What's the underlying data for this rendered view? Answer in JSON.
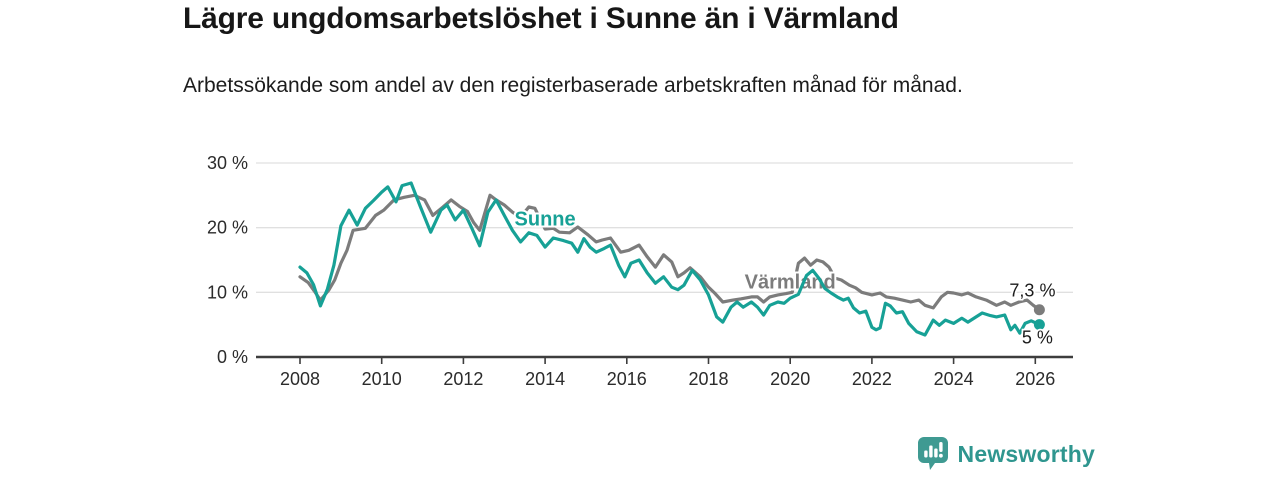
{
  "header": {
    "title": "Lägre ungdomsarbetslöshet i Sunne än i Värmland",
    "subtitle": "Arbetssökande som andel av den registerbaserade arbetskraften månad för månad."
  },
  "branding": {
    "name": "Newsworthy",
    "icon": "bar-chart-speech-bubble-icon",
    "icon_color": "#3f9a92",
    "text_color": "#2f968f"
  },
  "chart_data": {
    "type": "line",
    "title": "Lägre ungdomsarbetslöshet i Sunne än i Värmland",
    "subtitle": "Arbetssökande som andel av den registerbaserade arbetskraften månad för månad.",
    "unit": "%",
    "grid": "horizontal",
    "xlim": [
      2007.0,
      2026.95
    ],
    "ylim": [
      0,
      30
    ],
    "y_ticks": [
      {
        "v": 0,
        "label": "0 %"
      },
      {
        "v": 10,
        "label": "10 %"
      },
      {
        "v": 20,
        "label": "20 %"
      },
      {
        "v": 30,
        "label": "30 %"
      }
    ],
    "x_ticks": [
      {
        "v": 2008,
        "label": "2008"
      },
      {
        "v": 2010,
        "label": "2010"
      },
      {
        "v": 2012,
        "label": "2012"
      },
      {
        "v": 2014,
        "label": "2014"
      },
      {
        "v": 2016,
        "label": "2016"
      },
      {
        "v": 2018,
        "label": "2018"
      },
      {
        "v": 2020,
        "label": "2020"
      },
      {
        "v": 2022,
        "label": "2022"
      },
      {
        "v": 2024,
        "label": "2024"
      },
      {
        "v": 2026,
        "label": "2026"
      }
    ],
    "colors": {
      "grid": "#e0e0e0",
      "axis": "#3d3d3d",
      "tick_text": "#2b2b2b",
      "end_label_text": "#1b1b1b"
    },
    "series": [
      {
        "name": "Värmland",
        "color": "#7c7c7c",
        "end_label": "7,3 %",
        "end_label_anchor": {
          "year": 2025.93,
          "pct": 10.3
        },
        "name_label_anchor": {
          "year": 2020.0,
          "pct": 11.7
        },
        "points": [
          [
            2008.0,
            12.4
          ],
          [
            2008.2,
            11.5
          ],
          [
            2008.35,
            10.2
          ],
          [
            2008.5,
            8.8
          ],
          [
            2008.7,
            10.3
          ],
          [
            2008.85,
            11.9
          ],
          [
            2009.0,
            14.5
          ],
          [
            2009.15,
            16.5
          ],
          [
            2009.3,
            19.6
          ],
          [
            2009.6,
            19.9
          ],
          [
            2009.85,
            21.9
          ],
          [
            2010.05,
            22.7
          ],
          [
            2010.3,
            24.3
          ],
          [
            2010.55,
            24.7
          ],
          [
            2010.8,
            25.0
          ],
          [
            2011.05,
            24.3
          ],
          [
            2011.25,
            21.9
          ],
          [
            2011.5,
            23.2
          ],
          [
            2011.7,
            24.3
          ],
          [
            2011.9,
            23.3
          ],
          [
            2012.1,
            22.5
          ],
          [
            2012.25,
            20.8
          ],
          [
            2012.4,
            19.6
          ],
          [
            2012.65,
            25.0
          ],
          [
            2012.8,
            24.3
          ],
          [
            2013.0,
            23.5
          ],
          [
            2013.2,
            22.4
          ],
          [
            2013.4,
            21.6
          ],
          [
            2013.6,
            23.2
          ],
          [
            2013.75,
            23.0
          ],
          [
            2014.0,
            19.8
          ],
          [
            2014.2,
            19.9
          ],
          [
            2014.35,
            19.3
          ],
          [
            2014.6,
            19.2
          ],
          [
            2014.8,
            20.1
          ],
          [
            2015.05,
            18.9
          ],
          [
            2015.25,
            17.8
          ],
          [
            2015.4,
            18.1
          ],
          [
            2015.6,
            18.4
          ],
          [
            2015.85,
            16.2
          ],
          [
            2016.05,
            16.5
          ],
          [
            2016.3,
            17.3
          ],
          [
            2016.5,
            15.5
          ],
          [
            2016.7,
            13.9
          ],
          [
            2016.9,
            15.8
          ],
          [
            2017.1,
            14.7
          ],
          [
            2017.25,
            12.4
          ],
          [
            2017.4,
            13.0
          ],
          [
            2017.55,
            13.8
          ],
          [
            2017.8,
            12.4
          ],
          [
            2018.0,
            10.8
          ],
          [
            2018.15,
            9.9
          ],
          [
            2018.35,
            8.5
          ],
          [
            2018.6,
            8.8
          ],
          [
            2018.8,
            9.0
          ],
          [
            2019.05,
            9.3
          ],
          [
            2019.2,
            9.3
          ],
          [
            2019.35,
            8.5
          ],
          [
            2019.5,
            9.3
          ],
          [
            2019.7,
            9.6
          ],
          [
            2019.9,
            9.8
          ],
          [
            2020.05,
            10.0
          ],
          [
            2020.2,
            14.5
          ],
          [
            2020.35,
            15.3
          ],
          [
            2020.5,
            14.2
          ],
          [
            2020.65,
            15.0
          ],
          [
            2020.8,
            14.7
          ],
          [
            2020.95,
            13.9
          ],
          [
            2021.1,
            12.2
          ],
          [
            2021.25,
            11.9
          ],
          [
            2021.45,
            11.1
          ],
          [
            2021.6,
            10.7
          ],
          [
            2021.75,
            10.0
          ],
          [
            2022.0,
            9.6
          ],
          [
            2022.2,
            9.9
          ],
          [
            2022.35,
            9.3
          ],
          [
            2022.55,
            9.1
          ],
          [
            2022.75,
            8.8
          ],
          [
            2022.95,
            8.5
          ],
          [
            2023.15,
            8.8
          ],
          [
            2023.3,
            8.0
          ],
          [
            2023.5,
            7.6
          ],
          [
            2023.7,
            9.3
          ],
          [
            2023.85,
            10.0
          ],
          [
            2024.0,
            9.9
          ],
          [
            2024.2,
            9.6
          ],
          [
            2024.35,
            9.9
          ],
          [
            2024.55,
            9.3
          ],
          [
            2024.8,
            8.8
          ],
          [
            2025.05,
            8.0
          ],
          [
            2025.25,
            8.5
          ],
          [
            2025.4,
            8.0
          ],
          [
            2025.6,
            8.5
          ],
          [
            2025.8,
            8.8
          ],
          [
            2025.95,
            8.0
          ],
          [
            2026.1,
            7.3
          ]
        ]
      },
      {
        "name": "Sunne",
        "color": "#17a196",
        "end_label": "5 %",
        "end_label_anchor": {
          "year": 2026.05,
          "pct": 3.0
        },
        "name_label_anchor": {
          "year": 2014.0,
          "pct": 21.4
        },
        "points": [
          [
            2008.0,
            13.9
          ],
          [
            2008.17,
            13.0
          ],
          [
            2008.33,
            11.2
          ],
          [
            2008.5,
            7.9
          ],
          [
            2008.67,
            10.5
          ],
          [
            2008.83,
            14.2
          ],
          [
            2009.0,
            20.3
          ],
          [
            2009.2,
            22.7
          ],
          [
            2009.4,
            20.4
          ],
          [
            2009.6,
            23.0
          ],
          [
            2009.8,
            24.2
          ],
          [
            2010.0,
            25.5
          ],
          [
            2010.15,
            26.3
          ],
          [
            2010.35,
            24.0
          ],
          [
            2010.5,
            26.5
          ],
          [
            2010.72,
            26.9
          ],
          [
            2010.95,
            23.2
          ],
          [
            2011.2,
            19.3
          ],
          [
            2011.45,
            22.7
          ],
          [
            2011.6,
            23.5
          ],
          [
            2011.8,
            21.2
          ],
          [
            2012.0,
            22.7
          ],
          [
            2012.2,
            20.0
          ],
          [
            2012.4,
            17.2
          ],
          [
            2012.6,
            22.4
          ],
          [
            2012.8,
            24.3
          ],
          [
            2013.0,
            21.9
          ],
          [
            2013.2,
            19.6
          ],
          [
            2013.4,
            17.8
          ],
          [
            2013.6,
            19.2
          ],
          [
            2013.8,
            18.8
          ],
          [
            2014.0,
            17.0
          ],
          [
            2014.2,
            18.4
          ],
          [
            2014.45,
            18.0
          ],
          [
            2014.65,
            17.6
          ],
          [
            2014.8,
            16.2
          ],
          [
            2014.95,
            18.3
          ],
          [
            2015.1,
            17.0
          ],
          [
            2015.25,
            16.2
          ],
          [
            2015.45,
            16.8
          ],
          [
            2015.6,
            17.3
          ],
          [
            2015.8,
            14.2
          ],
          [
            2015.95,
            12.4
          ],
          [
            2016.1,
            14.5
          ],
          [
            2016.3,
            15.0
          ],
          [
            2016.5,
            13.0
          ],
          [
            2016.7,
            11.4
          ],
          [
            2016.9,
            12.4
          ],
          [
            2017.1,
            10.8
          ],
          [
            2017.25,
            10.4
          ],
          [
            2017.4,
            11.1
          ],
          [
            2017.6,
            13.4
          ],
          [
            2017.8,
            11.9
          ],
          [
            2018.0,
            9.6
          ],
          [
            2018.2,
            6.2
          ],
          [
            2018.35,
            5.4
          ],
          [
            2018.55,
            7.7
          ],
          [
            2018.7,
            8.5
          ],
          [
            2018.85,
            7.7
          ],
          [
            2019.05,
            8.5
          ],
          [
            2019.2,
            7.7
          ],
          [
            2019.35,
            6.5
          ],
          [
            2019.5,
            8.0
          ],
          [
            2019.7,
            8.5
          ],
          [
            2019.85,
            8.3
          ],
          [
            2020.0,
            9.1
          ],
          [
            2020.2,
            9.7
          ],
          [
            2020.4,
            12.6
          ],
          [
            2020.55,
            13.4
          ],
          [
            2020.7,
            12.2
          ],
          [
            2020.85,
            10.6
          ],
          [
            2021.0,
            9.9
          ],
          [
            2021.15,
            9.3
          ],
          [
            2021.3,
            8.8
          ],
          [
            2021.42,
            9.1
          ],
          [
            2021.55,
            7.6
          ],
          [
            2021.7,
            6.8
          ],
          [
            2021.85,
            7.1
          ],
          [
            2022.0,
            4.6
          ],
          [
            2022.1,
            4.2
          ],
          [
            2022.2,
            4.5
          ],
          [
            2022.33,
            8.3
          ],
          [
            2022.45,
            7.9
          ],
          [
            2022.6,
            6.8
          ],
          [
            2022.75,
            7.0
          ],
          [
            2022.9,
            5.2
          ],
          [
            2023.1,
            3.9
          ],
          [
            2023.3,
            3.4
          ],
          [
            2023.5,
            5.7
          ],
          [
            2023.65,
            4.9
          ],
          [
            2023.8,
            5.7
          ],
          [
            2024.0,
            5.2
          ],
          [
            2024.2,
            6.0
          ],
          [
            2024.35,
            5.4
          ],
          [
            2024.55,
            6.2
          ],
          [
            2024.7,
            6.8
          ],
          [
            2024.9,
            6.4
          ],
          [
            2025.05,
            6.2
          ],
          [
            2025.25,
            6.5
          ],
          [
            2025.4,
            4.2
          ],
          [
            2025.5,
            4.9
          ],
          [
            2025.62,
            3.7
          ],
          [
            2025.75,
            5.2
          ],
          [
            2025.9,
            5.6
          ],
          [
            2026.1,
            5.0
          ]
        ]
      }
    ]
  }
}
